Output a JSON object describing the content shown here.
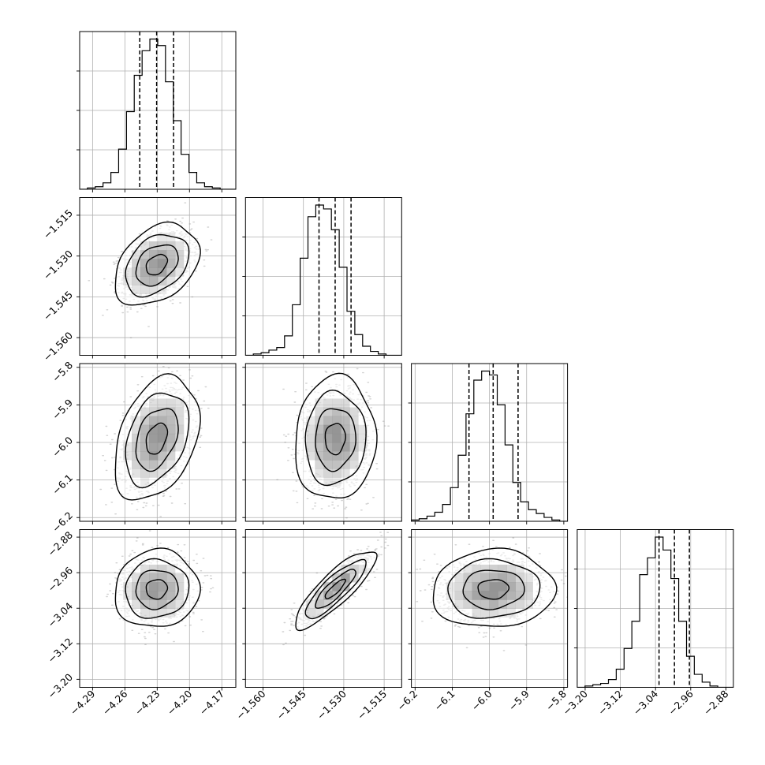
{
  "chart_data": {
    "type": "corner",
    "title": "",
    "parameters": [
      {
        "ticks": [
          "−4.29",
          "−4.26",
          "−4.23",
          "−4.20",
          "−4.17"
        ],
        "tick_values": [
          -4.29,
          -4.26,
          -4.23,
          -4.2,
          -4.17
        ],
        "range": [
          -4.302,
          -4.157
        ]
      },
      {
        "ticks": [
          "−1.560",
          "−1.545",
          "−1.530",
          "−1.515"
        ],
        "tick_values": [
          -1.56,
          -1.545,
          -1.53,
          -1.515
        ],
        "range": [
          -1.5665,
          -1.5085
        ]
      },
      {
        "ticks": [
          "−6.2",
          "−6.1",
          "−6.0",
          "−5.9",
          "−5.8"
        ],
        "tick_values": [
          -6.2,
          -6.1,
          -6.0,
          -5.9,
          -5.8
        ],
        "range": [
          -6.21,
          -5.79
        ]
      },
      {
        "ticks": [
          "−3.20",
          "−3.12",
          "−3.04",
          "−2.96",
          "−2.88"
        ],
        "tick_values": [
          -3.2,
          -3.12,
          -3.04,
          -2.96,
          -2.88
        ],
        "range": [
          -3.218,
          -2.863
        ]
      }
    ],
    "quantiles_marked": [
      0.16,
      0.5,
      0.84
    ],
    "histograms": [
      {
        "param": 0,
        "bin_edges": [
          -4.302,
          -4.2948,
          -4.2875,
          -4.2803,
          -4.273,
          -4.2658,
          -4.2585,
          -4.2513,
          -4.244,
          -4.2368,
          -4.2295,
          -4.2223,
          -4.215,
          -4.2078,
          -4.2005,
          -4.1933,
          -4.186,
          -4.1788,
          -4.1715,
          -4.1643,
          -4.157
        ],
        "counts": [
          0,
          1,
          2,
          5,
          13,
          31,
          60,
          88,
          107,
          116,
          111,
          83,
          53,
          27,
          13,
          5,
          2,
          1,
          0,
          0
        ],
        "quantile_lines": [
          -4.2462,
          -4.2305,
          -4.2148
        ]
      },
      {
        "param": 1,
        "bin_edges": [
          -1.5665,
          -1.5636,
          -1.5607,
          -1.5578,
          -1.5549,
          -1.552,
          -1.5491,
          -1.5462,
          -1.5433,
          -1.5404,
          -1.5375,
          -1.5346,
          -1.5317,
          -1.5288,
          -1.5259,
          -1.523,
          -1.5201,
          -1.5172,
          -1.5143,
          -1.5114,
          -1.5085
        ],
        "counts": [
          0,
          1,
          2,
          4,
          6,
          15,
          39,
          75,
          107,
          116,
          113,
          97,
          68,
          34,
          16,
          7,
          3,
          1,
          0,
          0
        ],
        "quantile_lines": [
          -1.5392,
          -1.5332,
          -1.5273
        ]
      },
      {
        "param": 2,
        "bin_edges": [
          -6.21,
          -6.189,
          -6.168,
          -6.147,
          -6.126,
          -6.105,
          -6.084,
          -6.063,
          -6.042,
          -6.021,
          -6.0,
          -5.979,
          -5.958,
          -5.937,
          -5.916,
          -5.895,
          -5.874,
          -5.853,
          -5.832,
          -5.811,
          -5.79
        ],
        "counts": [
          1,
          2,
          4,
          7,
          13,
          26,
          51,
          83,
          109,
          116,
          113,
          90,
          59,
          30,
          15,
          9,
          6,
          3,
          1,
          0
        ],
        "quantile_lines": [
          -6.055,
          -5.99,
          -5.923
        ]
      },
      {
        "param": 3,
        "bin_edges": [
          -3.218,
          -3.2003,
          -3.1825,
          -3.1648,
          -3.147,
          -3.1293,
          -3.1115,
          -3.0938,
          -3.076,
          -3.0583,
          -3.0405,
          -3.0228,
          -3.005,
          -2.9873,
          -2.9695,
          -2.9518,
          -2.934,
          -2.9163,
          -2.8985,
          -2.8808,
          -2.863
        ],
        "counts": [
          0,
          1,
          2,
          3,
          6,
          14,
          30,
          51,
          87,
          100,
          116,
          106,
          84,
          51,
          24,
          10,
          4,
          1,
          0,
          0
        ],
        "quantile_lines": [
          -3.032,
          -2.997,
          -2.963
        ]
      }
    ],
    "pairs": [
      {
        "x_param": 0,
        "y_param": 1,
        "mean": [
          -4.2305,
          -1.5332
        ],
        "std": [
          0.0157,
          0.006
        ],
        "correlation": 0.35
      },
      {
        "x_param": 0,
        "y_param": 2,
        "mean": [
          -4.2305,
          -5.99
        ],
        "std": [
          0.0157,
          0.066
        ],
        "correlation": 0.35
      },
      {
        "x_param": 1,
        "y_param": 2,
        "mean": [
          -1.5332,
          -5.99
        ],
        "std": [
          0.006,
          0.066
        ],
        "correlation": 0.05
      },
      {
        "x_param": 0,
        "y_param": 3,
        "mean": [
          -4.2305,
          -2.997
        ],
        "std": [
          0.0157,
          0.035
        ],
        "correlation": 0.05
      },
      {
        "x_param": 1,
        "y_param": 3,
        "mean": [
          -1.5332,
          -2.997
        ],
        "std": [
          0.006,
          0.035
        ],
        "correlation": 0.85
      },
      {
        "x_param": 2,
        "y_param": 3,
        "mean": [
          -5.99,
          -2.997
        ],
        "std": [
          0.066,
          0.035
        ],
        "correlation": 0.05
      }
    ],
    "contour_levels_sigma": [
      0.5,
      1.0,
      1.5,
      2.0
    ],
    "grid": true,
    "colors": {
      "hist": "#000000",
      "points": "#7f7f7f",
      "density": "#000000",
      "grid": "#b0b0b0"
    }
  }
}
